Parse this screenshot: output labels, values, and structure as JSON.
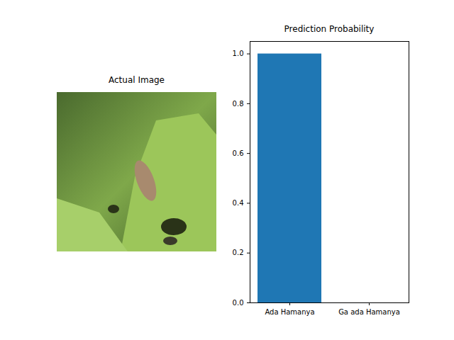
{
  "chart_data": [
    {
      "type": "image",
      "title": "Actual Image"
    },
    {
      "type": "bar",
      "title": "Prediction Probability",
      "categories": [
        "Ada Hamanya",
        "Ga ada Hamanya"
      ],
      "values": [
        1.0,
        0.0
      ],
      "color": "#1f77b4",
      "ylim": [
        0,
        1.05
      ],
      "yticks": [
        {
          "value": 0,
          "label": "0.0"
        },
        {
          "value": 0.2,
          "label": "0.2"
        },
        {
          "value": 0.4,
          "label": "0.4"
        },
        {
          "value": 0.6,
          "label": "0.6"
        },
        {
          "value": 0.8,
          "label": "0.8"
        },
        {
          "value": 1.0,
          "label": "1.0"
        }
      ],
      "grid": false
    }
  ]
}
